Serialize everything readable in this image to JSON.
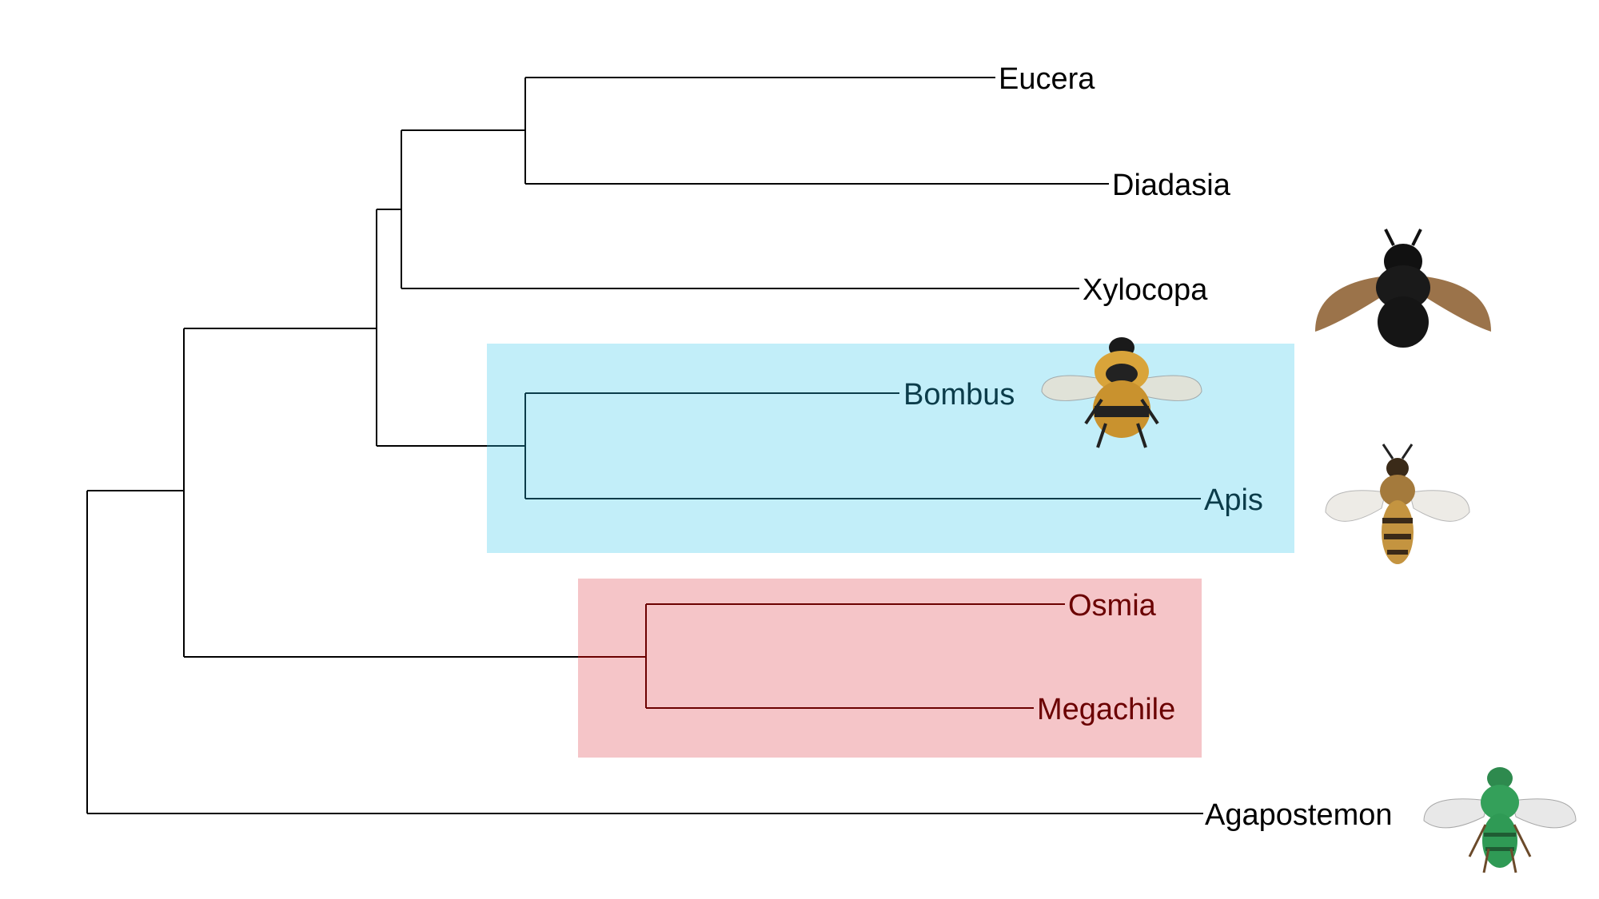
{
  "diagram": {
    "type": "phylogenetic-tree",
    "taxa": [
      {
        "id": "eucera",
        "label": "Eucera",
        "color": "#000000"
      },
      {
        "id": "diadasia",
        "label": "Diadasia",
        "color": "#000000"
      },
      {
        "id": "xylocopa",
        "label": "Xylocopa",
        "color": "#000000",
        "illustration": "carpenter-bee-icon"
      },
      {
        "id": "bombus",
        "label": "Bombus",
        "color": "#0b3c4a",
        "illustration": "bumble-bee-icon"
      },
      {
        "id": "apis",
        "label": "Apis",
        "color": "#0b3c4a",
        "illustration": "honey-bee-icon"
      },
      {
        "id": "osmia",
        "label": "Osmia",
        "color": "#6b0000"
      },
      {
        "id": "megachile",
        "label": "Megachile",
        "color": "#6b0000"
      },
      {
        "id": "agapostemon",
        "label": "Agapostemon",
        "color": "#000000",
        "illustration": "sweat-bee-icon"
      }
    ],
    "highlighted_clades": [
      {
        "id": "apidae-corbiculate",
        "members": [
          "Bombus",
          "Apis"
        ],
        "fill": "#c2eef9",
        "line_color": "#0b3c4a"
      },
      {
        "id": "megachilidae",
        "members": [
          "Osmia",
          "Megachile"
        ],
        "fill": "#f5c5c8",
        "line_color": "#6b0000"
      }
    ],
    "default_line_color": "#000000"
  }
}
